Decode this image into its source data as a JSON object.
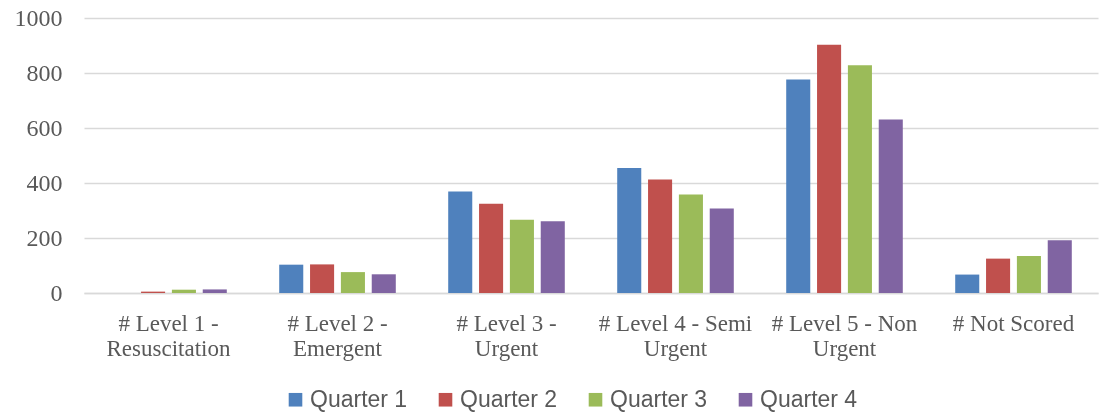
{
  "chart_data": {
    "type": "bar",
    "categories": [
      "# Level 1 - Resuscitation",
      "# Level 2 - Emergent",
      "# Level 3 - Urgent",
      "# Level 4 - Semi Urgent",
      "# Level 5 - Non Urgent",
      "# Not Scored"
    ],
    "series": [
      {
        "name": "Quarter 1",
        "color": "#4f81bd",
        "values": [
          0,
          103,
          369,
          455,
          776,
          67
        ]
      },
      {
        "name": "Quarter 2",
        "color": "#c0504d",
        "values": [
          5,
          104,
          325,
          413,
          903,
          125
        ]
      },
      {
        "name": "Quarter 3",
        "color": "#9bbb59",
        "values": [
          12,
          76,
          266,
          358,
          828,
          135
        ]
      },
      {
        "name": "Quarter 4",
        "color": "#8064a2",
        "values": [
          13,
          68,
          261,
          307,
          631,
          192
        ]
      }
    ],
    "ylim": [
      0,
      1000
    ],
    "yticks": [
      0,
      200,
      400,
      600,
      800,
      1000
    ],
    "grid": "y",
    "legend": "bottom"
  }
}
